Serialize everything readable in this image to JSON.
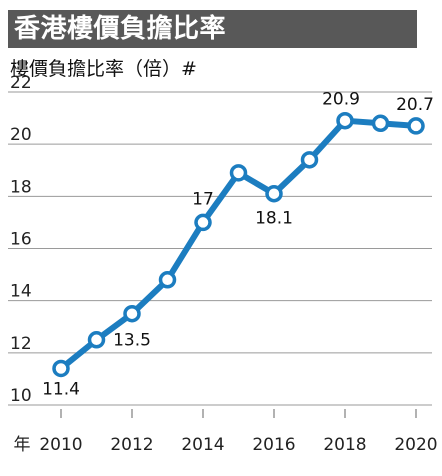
{
  "chart_data": {
    "type": "line",
    "title": "香港樓價負擔比率",
    "ylabel": "樓價負擔比率（倍）#",
    "xunit": "年",
    "x": [
      2010,
      2011,
      2012,
      2013,
      2014,
      2015,
      2016,
      2017,
      2018,
      2019,
      2020
    ],
    "series": [
      {
        "values": [
          11.4,
          12.5,
          13.5,
          14.8,
          17.0,
          18.9,
          18.1,
          19.4,
          20.9,
          20.8,
          20.7
        ]
      }
    ],
    "data_labels": [
      {
        "index": 0,
        "text": "11.4"
      },
      {
        "index": 2,
        "text": "13.5"
      },
      {
        "index": 4,
        "text": "17"
      },
      {
        "index": 6,
        "text": "18.1"
      },
      {
        "index": 8,
        "text": "20.9"
      },
      {
        "index": 10,
        "text": "20.7"
      }
    ],
    "ylim": [
      10,
      22
    ],
    "yticks": [
      10,
      12,
      14,
      16,
      18,
      20,
      22
    ],
    "xticks": [
      2010,
      2012,
      2014,
      2016,
      2018,
      2020
    ],
    "grid": "horizontal",
    "colors": {
      "line": "#1c7dc0",
      "marker_fill": "#ffffff",
      "grid": "#9a9a9a",
      "title_bg": "#585858"
    }
  }
}
